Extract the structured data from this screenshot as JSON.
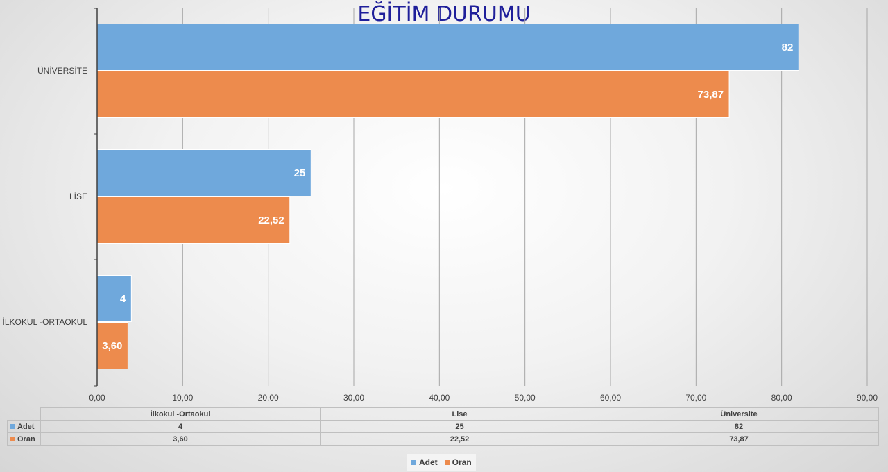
{
  "chart_data": {
    "type": "bar",
    "orientation": "horizontal",
    "title": "EĞİTİM DURUMU",
    "categories_axis": [
      "İLKOKUL -ORTAOKUL",
      "LİSE",
      "ÜNİVERSİTE"
    ],
    "categories_table": [
      "İlkokul -Ortaokul",
      "Lise",
      "Üniversite"
    ],
    "series": [
      {
        "name": "Adet",
        "color": "#6fa8dc",
        "values": [
          4,
          25,
          82
        ],
        "labels": [
          "4",
          "25",
          "82"
        ]
      },
      {
        "name": "Oran",
        "color": "#ed8b4d",
        "values": [
          3.6,
          22.52,
          73.87
        ],
        "labels": [
          "3,60",
          "22,52",
          "73,87"
        ]
      }
    ],
    "xlim": [
      0,
      90
    ],
    "x_ticks": [
      "0,00",
      "10,00",
      "20,00",
      "30,00",
      "40,00",
      "50,00",
      "60,00",
      "70,00",
      "80,00",
      "90,00"
    ],
    "grid": true,
    "data_table": true,
    "legend": "bottom"
  }
}
